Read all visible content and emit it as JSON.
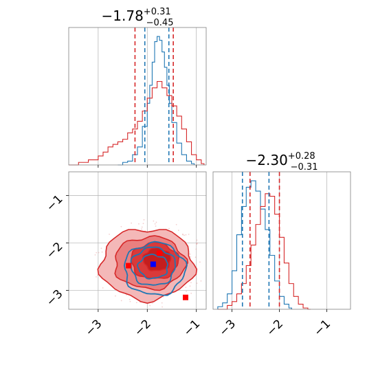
{
  "chart_data": [
    {
      "type": "area",
      "panel": "histogram-parameter-1",
      "title": {
        "value": "−1.78",
        "plus": "+0.31",
        "minus": "−0.45"
      },
      "xlim": [
        -3.6,
        -0.8
      ],
      "grid": true,
      "series": [
        {
          "color": "#1f77b4",
          "quantiles": [
            -2.05,
            -1.56
          ],
          "x": [
            -2.6,
            -2.5,
            -2.4,
            -2.3,
            -2.2,
            -2.1,
            -2.0,
            -1.95,
            -1.9,
            -1.85,
            -1.8,
            -1.75,
            -1.7,
            -1.65,
            -1.6,
            -1.55,
            -1.5,
            -1.4,
            -1.3,
            -1.2,
            -1.1
          ],
          "values": [
            0,
            2,
            3,
            8,
            14,
            30,
            48,
            62,
            80,
            96,
            100,
            97,
            88,
            76,
            62,
            48,
            33,
            17,
            8,
            3,
            1
          ]
        },
        {
          "color": "#d62728",
          "quantiles": [
            -2.25,
            -1.47
          ],
          "x": [
            -3.6,
            -3.4,
            -3.2,
            -3.0,
            -2.9,
            -2.8,
            -2.7,
            -2.6,
            -2.5,
            -2.4,
            -2.3,
            -2.2,
            -2.1,
            -2.0,
            -1.9,
            -1.8,
            -1.7,
            -1.6,
            -1.5,
            -1.4,
            -1.3,
            -1.2,
            -1.1,
            -1.0,
            -0.9
          ],
          "values": [
            0,
            2,
            4,
            7,
            10,
            14,
            16,
            18,
            20,
            25,
            28,
            34,
            42,
            52,
            60,
            65,
            60,
            54,
            46,
            38,
            28,
            18,
            8,
            4,
            1
          ]
        }
      ]
    },
    {
      "type": "area",
      "panel": "histogram-parameter-2",
      "title": {
        "value": "−2.30",
        "plus": "+0.28",
        "minus": "−0.31"
      },
      "xlim": [
        -3.4,
        -0.5
      ],
      "xticks": [
        "−3",
        "−2",
        "−1"
      ],
      "grid": true,
      "series": [
        {
          "color": "#1f77b4",
          "quantiles": [
            -2.78,
            -2.22
          ],
          "x": [
            -3.3,
            -3.2,
            -3.1,
            -3.0,
            -2.9,
            -2.8,
            -2.7,
            -2.6,
            -2.5,
            -2.4,
            -2.3,
            -2.2,
            -2.1,
            -2.0,
            -1.9,
            -1.8
          ],
          "values": [
            2,
            5,
            12,
            30,
            58,
            80,
            95,
            100,
            92,
            78,
            62,
            42,
            22,
            10,
            4,
            1
          ]
        },
        {
          "color": "#d62728",
          "quantiles": [
            -2.62,
            -2.0
          ],
          "x": [
            -3.3,
            -3.1,
            -3.0,
            -2.9,
            -2.8,
            -2.7,
            -2.6,
            -2.5,
            -2.4,
            -2.3,
            -2.2,
            -2.1,
            -2.0,
            -1.9,
            -1.8,
            -1.7,
            -1.6,
            -1.5,
            -1.4
          ],
          "values": [
            0,
            3,
            6,
            12,
            20,
            34,
            50,
            66,
            80,
            90,
            88,
            74,
            56,
            36,
            20,
            10,
            4,
            1,
            0
          ]
        }
      ]
    },
    {
      "type": "scatter",
      "panel": "joint-contours",
      "xlim": [
        -3.6,
        -0.8
      ],
      "ylim": [
        -3.4,
        -0.5
      ],
      "xticks": [
        "−3",
        "−2",
        "−1"
      ],
      "yticks": [
        "−1",
        "−2",
        "−3"
      ],
      "grid": true,
      "contours": [
        {
          "color": "#d62728",
          "filled": true,
          "levels": [
            {
              "center": [
                -2.0,
                -2.45
              ],
              "radii": [
                0.95,
                0.75
              ],
              "fill": "#f4b8b8"
            },
            {
              "center": [
                -1.95,
                -2.42
              ],
              "radii": [
                0.72,
                0.55
              ],
              "fill": "#e98080"
            },
            {
              "center": [
                -1.85,
                -2.38
              ],
              "radii": [
                0.48,
                0.38
              ],
              "fill": "#d93a3a"
            },
            {
              "center": [
                -1.8,
                -2.35
              ],
              "radii": [
                0.28,
                0.24
              ],
              "fill": "#c41e1e"
            }
          ]
        },
        {
          "color": "#1f77b4",
          "filled": false,
          "levels": [
            {
              "center": [
                -1.85,
                -2.55
              ],
              "radii": [
                0.62,
                0.55
              ]
            },
            {
              "center": [
                -1.88,
                -2.5
              ],
              "radii": [
                0.45,
                0.4
              ]
            },
            {
              "center": [
                -1.88,
                -2.5
              ],
              "radii": [
                0.3,
                0.25
              ]
            }
          ]
        }
      ],
      "markers": [
        {
          "x": -2.38,
          "y": -2.48,
          "color": "#ff0000"
        },
        {
          "x": -1.75,
          "y": -2.22,
          "color": "#ff0000"
        },
        {
          "x": -1.22,
          "y": -3.15,
          "color": "#ff0000"
        },
        {
          "x": -1.88,
          "y": -2.45,
          "color": "#0000ff"
        }
      ]
    }
  ]
}
